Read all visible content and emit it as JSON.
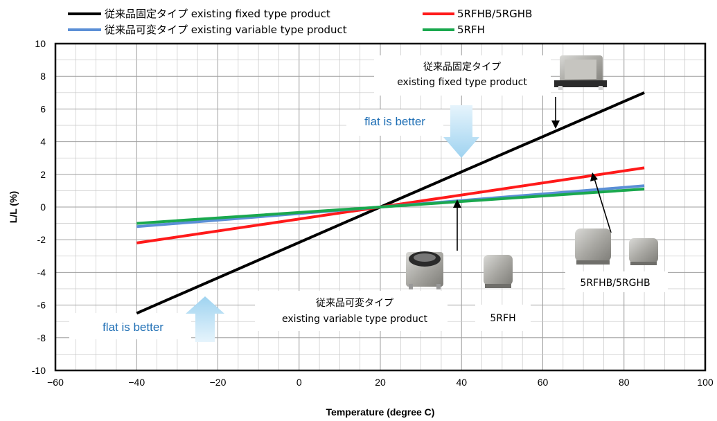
{
  "chart_data": {
    "type": "line",
    "xlabel": "Temperature (degree C)",
    "ylabel": "L/L (%)",
    "xlim": [
      -60,
      100
    ],
    "ylim": [
      -10,
      10
    ],
    "x_ticks": [
      "−60",
      "−40",
      "−20",
      "0",
      "20",
      "40",
      "60",
      "80",
      "100"
    ],
    "y_ticks": [
      "10",
      "8",
      "6",
      "4",
      "2",
      "0",
      "-2",
      "-4",
      "-6",
      "-8",
      "-10"
    ],
    "grid": true,
    "legend_position": "top",
    "series": [
      {
        "name": "従来品固定タイプ existing fixed type product",
        "color": "#000000",
        "x": [
          -40,
          20,
          85
        ],
        "y": [
          -6.5,
          0,
          7.0
        ]
      },
      {
        "name": "5RFHB/5RGHB",
        "color": "#ff1a1a",
        "x": [
          -40,
          20,
          85
        ],
        "y": [
          -2.2,
          0,
          2.4
        ]
      },
      {
        "name": "従来品可変タイプ existing variable type product",
        "color": "#5b8fd6",
        "x": [
          -40,
          20,
          85
        ],
        "y": [
          -1.2,
          0,
          1.3
        ]
      },
      {
        "name": "5RFH",
        "color": "#1aa84e",
        "x": [
          -40,
          20,
          85
        ],
        "y": [
          -1.0,
          0,
          1.1
        ]
      }
    ],
    "annotations": {
      "fixed_jp": "従来品固定タイプ",
      "fixed_en": "existing fixed type product",
      "variable_jp": "従来品可変タイプ",
      "variable_en": "existing variable type product",
      "rfh": "5RFH",
      "rfhb": "5RFHB/5RGHB",
      "flat_top": "flat is better",
      "flat_bottom": "flat is better"
    }
  }
}
